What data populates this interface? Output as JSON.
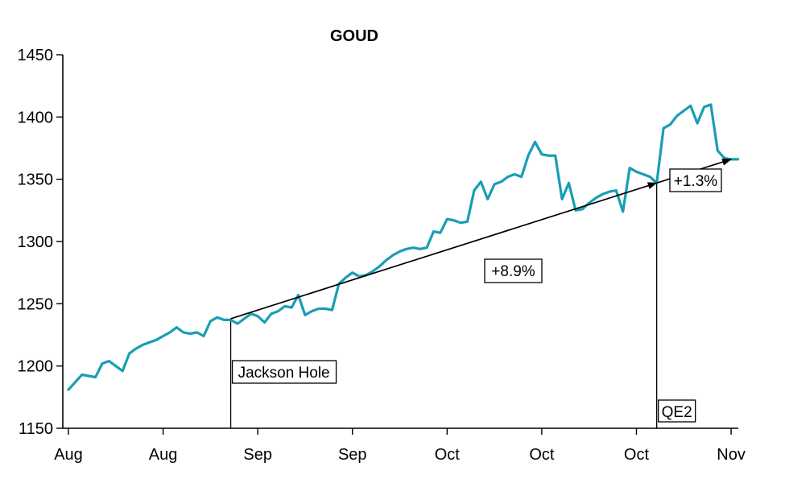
{
  "chart_data": {
    "type": "line",
    "title": "GOUD",
    "xlabel": "",
    "ylabel": "",
    "ylim": [
      1150,
      1450
    ],
    "y_tick_values": [
      1450,
      1400,
      1350,
      1300,
      1250,
      1200,
      1150
    ],
    "x_tick_labels": [
      "Aug",
      "Aug",
      "Sep",
      "Sep",
      "Oct",
      "Oct",
      "Oct",
      "Nov"
    ],
    "x_tick_days": [
      0,
      14,
      28,
      42,
      56,
      70,
      84,
      98
    ],
    "grid": false,
    "legend_position": "none",
    "axis_color": "#000000",
    "series": [
      {
        "name": "GOUD",
        "color": "#189EB4",
        "values": [
          1181,
          1187,
          1193,
          1192,
          1191,
          1202,
          1204,
          1200,
          1196,
          1210,
          1214,
          1217,
          1219,
          1221,
          1224,
          1227,
          1231,
          1227,
          1226,
          1227,
          1224,
          1236,
          1239,
          1237,
          1237,
          1234,
          1238,
          1242,
          1240,
          1235,
          1242,
          1244,
          1248,
          1247,
          1257,
          1241,
          1244,
          1246,
          1246,
          1245,
          1266,
          1271,
          1275,
          1272,
          1273,
          1276,
          1280,
          1285,
          1289,
          1292,
          1294,
          1295,
          1294,
          1295,
          1308,
          1307,
          1318,
          1317,
          1315,
          1316,
          1341,
          1348,
          1334,
          1346,
          1348,
          1352,
          1354,
          1352,
          1369,
          1380,
          1370,
          1369,
          1369,
          1334,
          1347,
          1325,
          1326,
          1331,
          1335,
          1338,
          1340,
          1341,
          1324,
          1359,
          1356,
          1354,
          1352,
          1347,
          1391,
          1394,
          1401,
          1405,
          1409,
          1395,
          1408,
          1410,
          1373,
          1367,
          1366,
          1366
        ]
      }
    ],
    "annotations": [
      {
        "id": "jackson-hole",
        "type": "event-line",
        "label": "Jackson Hole",
        "day": 24,
        "value": 1237
      },
      {
        "id": "qe2",
        "type": "event-line",
        "label": "QE2",
        "day": 87,
        "value": 1347
      },
      {
        "id": "trend-1",
        "type": "trend-arrow",
        "label": "+8.9%",
        "from": {
          "day": 24,
          "value": 1238
        },
        "to": {
          "day": 87,
          "value": 1347
        }
      },
      {
        "id": "trend-2",
        "type": "trend-arrow",
        "label": "+1.3%",
        "from": {
          "day": 87,
          "value": 1347
        },
        "to": {
          "day": 98,
          "value": 1366
        }
      }
    ]
  }
}
